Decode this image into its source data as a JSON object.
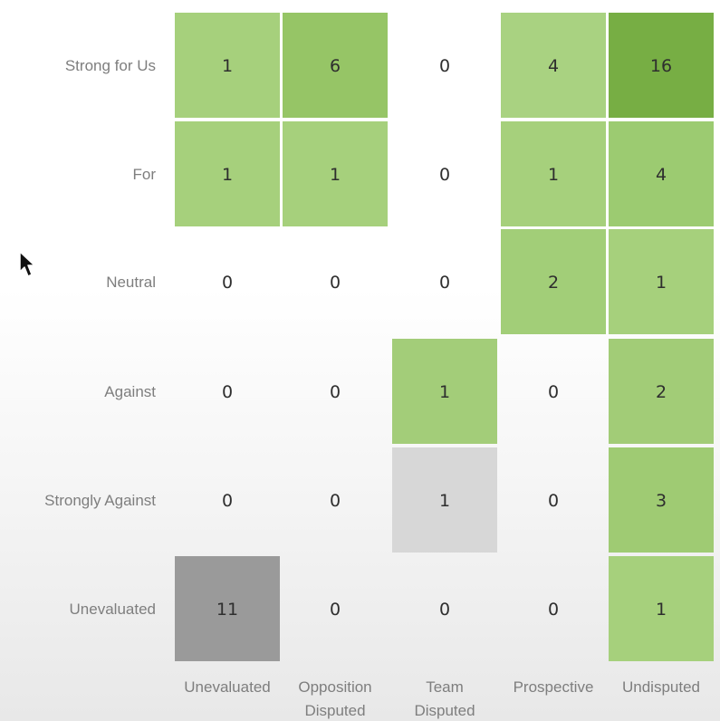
{
  "chart_data": {
    "type": "heatmap",
    "title": "",
    "xlabel": "",
    "ylabel": "",
    "rows": [
      "Strong for Us",
      "For",
      "Neutral",
      "Against",
      "Strongly Against",
      "Unevaluated"
    ],
    "columns": [
      [
        "Unevaluated"
      ],
      [
        "Opposition",
        "Disputed"
      ],
      [
        "Team",
        "Disputed"
      ],
      [
        "Prospective"
      ],
      [
        "Undisputed"
      ]
    ],
    "values": [
      [
        1,
        6,
        0,
        4,
        16
      ],
      [
        1,
        1,
        0,
        1,
        4
      ],
      [
        0,
        0,
        0,
        2,
        1
      ],
      [
        0,
        0,
        1,
        0,
        2
      ],
      [
        0,
        0,
        1,
        0,
        3
      ],
      [
        11,
        0,
        0,
        0,
        1
      ]
    ],
    "cell_colors": [
      [
        "#a6d07c",
        "#96c566",
        null,
        "#a9d281",
        "#77ae44"
      ],
      [
        "#a6d07c",
        "#a6d07c",
        null,
        "#a6d07c",
        "#9ccb71"
      ],
      [
        null,
        null,
        null,
        "#a2ce78",
        "#a6d07c"
      ],
      [
        null,
        null,
        "#a3cd79",
        null,
        "#a2cc77"
      ],
      [
        null,
        null,
        "#d7d7d7",
        null,
        "#9fcb73"
      ],
      [
        "#9a9a9a",
        null,
        null,
        null,
        "#a6d07c"
      ]
    ]
  }
}
